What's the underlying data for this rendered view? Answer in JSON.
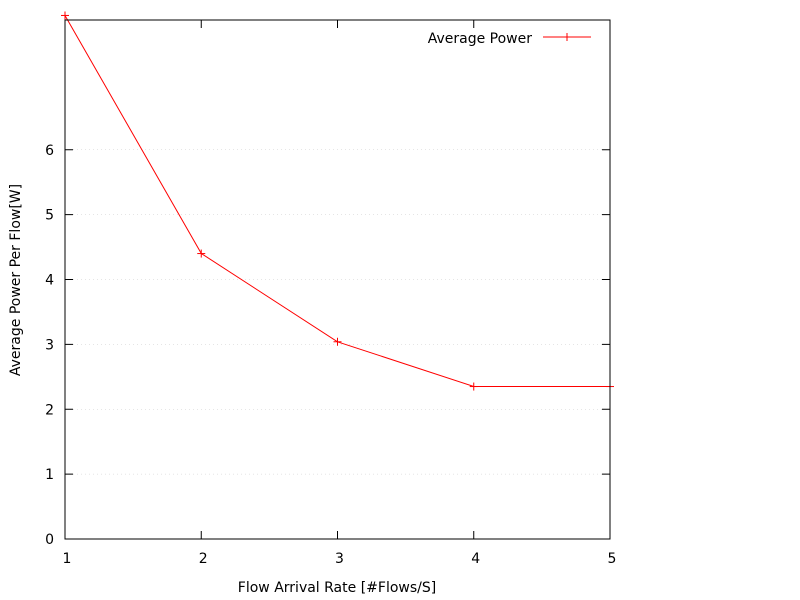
{
  "chart_data": {
    "type": "line",
    "title": "",
    "xlabel": "Flow Arrival Rate [#Flows/S]",
    "ylabel": "Average Power Per Flow[W]",
    "xlim": [
      1,
      5
    ],
    "ylim": [
      0,
      8
    ],
    "xticks": [
      "1",
      "2",
      "3",
      "4",
      "5"
    ],
    "yticks": [
      "0",
      "1",
      "2",
      "3",
      "4",
      "5",
      "6"
    ],
    "grid": true,
    "legend_position": "top-right",
    "series": [
      {
        "name": "Average Power",
        "color": "#ff0000",
        "marker": "plus",
        "x": [
          1,
          2,
          3,
          4,
          5
        ],
        "y": [
          8.07,
          4.4,
          3.04,
          2.35,
          2.35
        ]
      }
    ]
  }
}
